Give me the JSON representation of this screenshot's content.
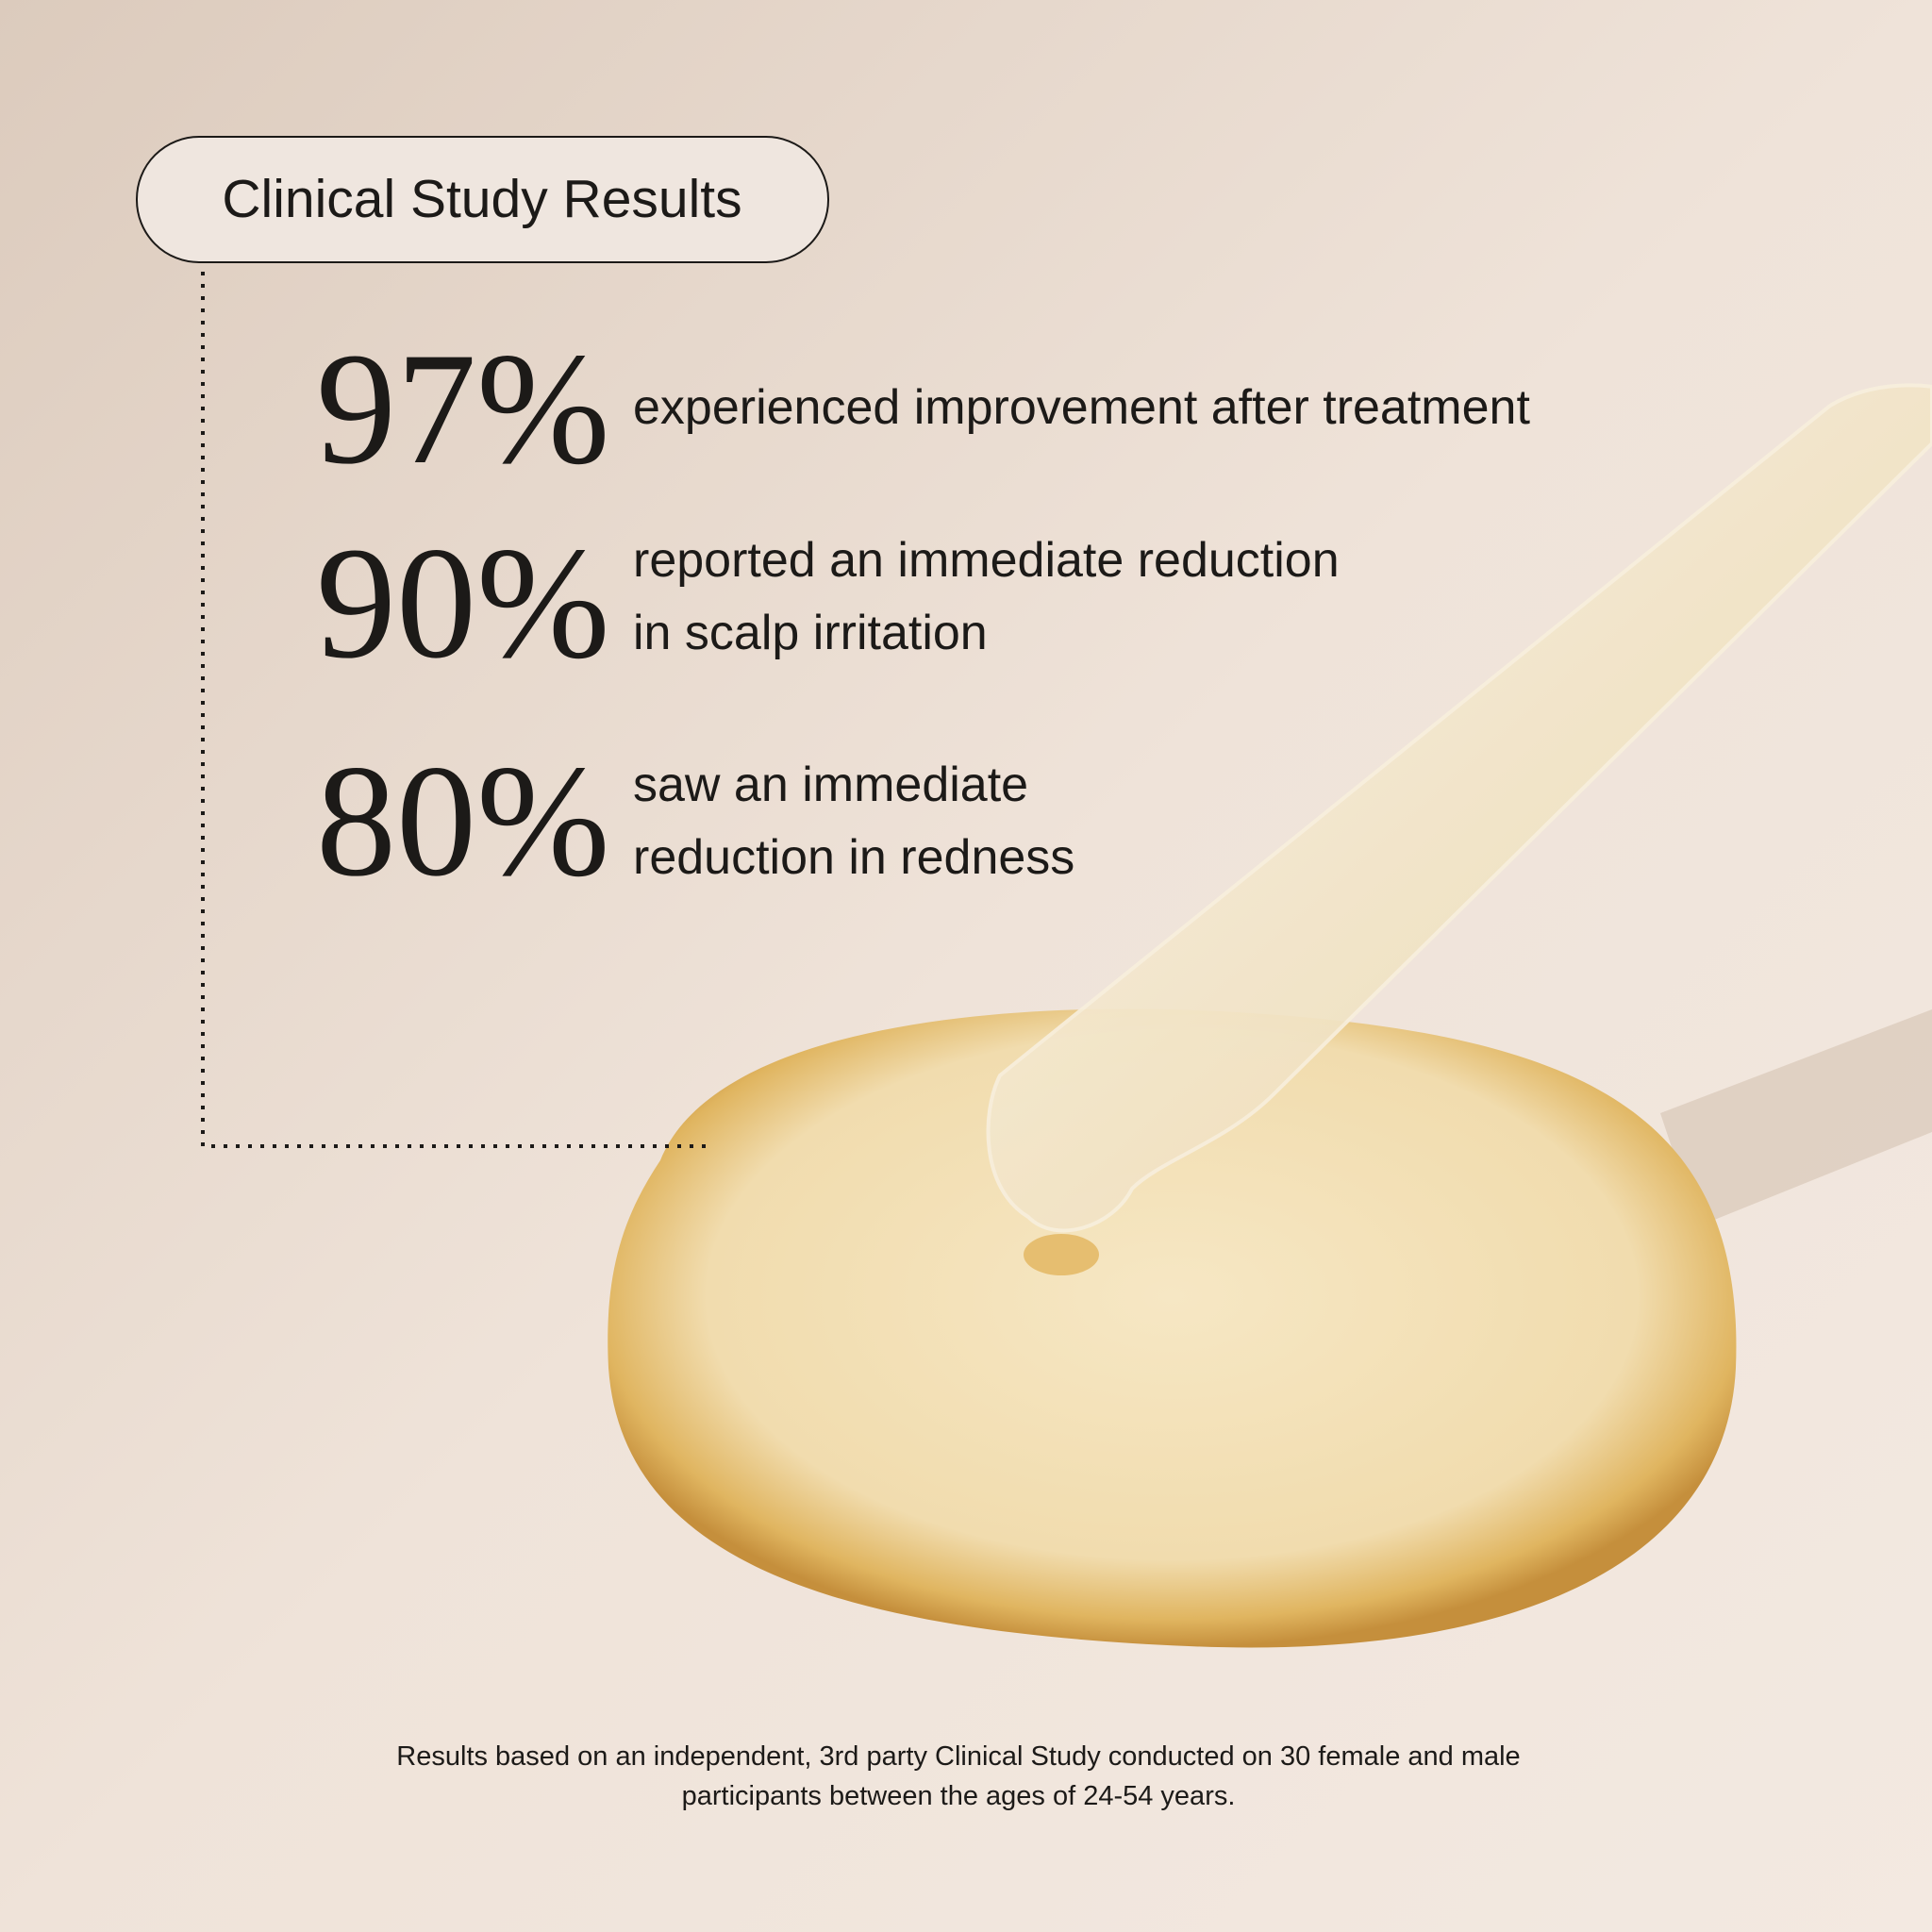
{
  "badge": {
    "title": "Clinical Study Results"
  },
  "stats": [
    {
      "value": "97%",
      "lines": [
        "experienced improvement after treatment"
      ]
    },
    {
      "value": "90%",
      "lines": [
        "reported an immediate reduction",
        "in scalp irritation"
      ]
    },
    {
      "value": "80%",
      "lines": [
        "saw an immediate",
        "reduction in redness"
      ]
    }
  ],
  "footnote": {
    "lines": [
      "Results based on an independent, 3rd party Clinical Study conducted on 30 female and male",
      "participants between the ages of 24-54 years."
    ]
  }
}
